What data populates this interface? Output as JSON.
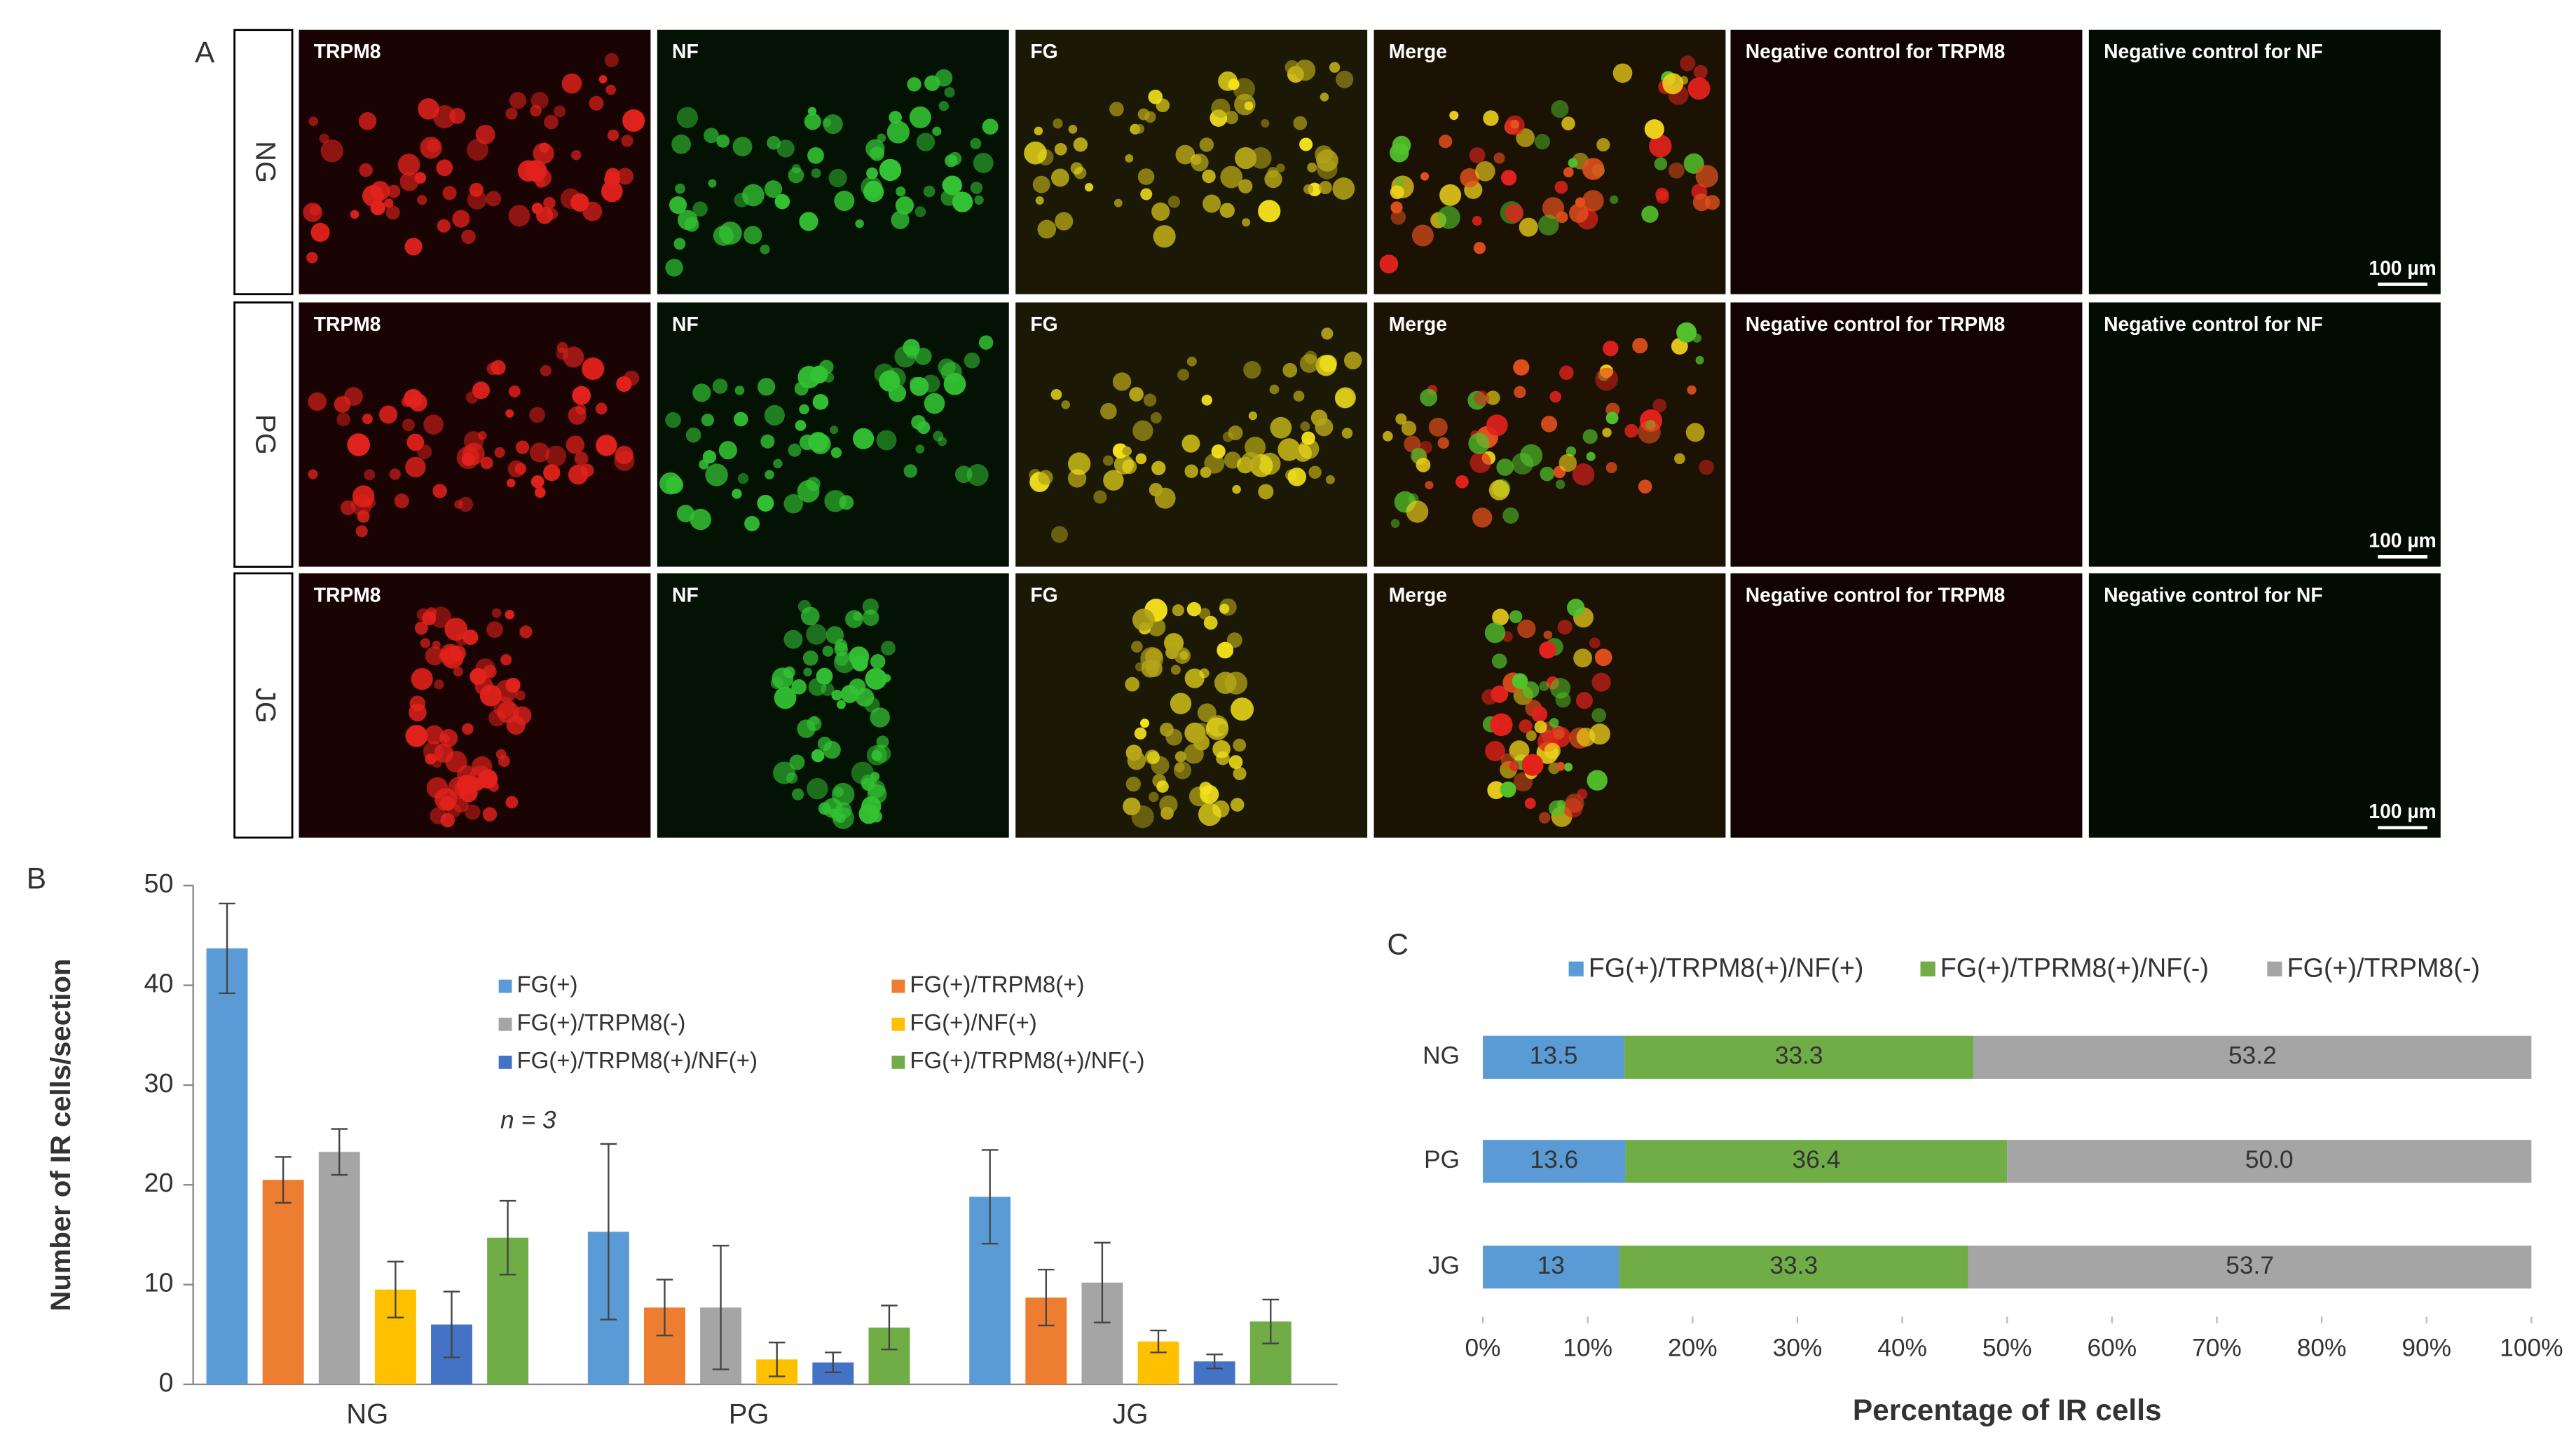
{
  "figure": {
    "panel_labels": [
      "A",
      "B",
      "C"
    ],
    "row_labels": [
      "NG",
      "PG",
      "JG"
    ],
    "column_labels": [
      "TRPM8",
      "NF",
      "FG",
      "Merge",
      "Negative control for TRPM8",
      "Negative control for NF"
    ],
    "scale_bar": "100 µm"
  },
  "chart_data": [
    {
      "type": "bar",
      "ylabel": "Number of IR cells/section",
      "annotation": "n = 3",
      "categories": [
        "NG",
        "PG",
        "JG"
      ],
      "series": [
        {
          "name": "FG(+)",
          "color": "#5b9bd5",
          "values": [
            43.7,
            15.3,
            18.8
          ],
          "errors": [
            4.5,
            8.8,
            4.7
          ]
        },
        {
          "name": "FG(+)/TRPM8(+)",
          "color": "#ed7d31",
          "values": [
            20.5,
            7.7,
            8.7
          ],
          "errors": [
            2.3,
            2.8,
            2.8
          ]
        },
        {
          "name": "FG(+)/TRPM8(-)",
          "color": "#a5a5a5",
          "values": [
            23.3,
            7.7,
            10.2
          ],
          "errors": [
            2.3,
            6.2,
            4.0
          ]
        },
        {
          "name": "FG(+)/NF(+)",
          "color": "#ffc000",
          "values": [
            9.5,
            2.5,
            4.3
          ],
          "errors": [
            2.8,
            1.7,
            1.1
          ]
        },
        {
          "name": "FG(+)/TRPM8(+)/NF(+)",
          "color": "#4472c4",
          "values": [
            6.0,
            2.2,
            2.3
          ],
          "errors": [
            3.3,
            1.0,
            0.7
          ]
        },
        {
          "name": "FG(+)/TRPM8(+)/NF(-)",
          "color": "#70ad47",
          "values": [
            14.7,
            5.7,
            6.3
          ],
          "errors": [
            3.7,
            2.2,
            2.2
          ]
        }
      ],
      "ylim": [
        0,
        50
      ],
      "yticks": [
        0,
        10,
        20,
        30,
        40,
        50
      ]
    },
    {
      "type": "stacked-barh",
      "xlabel": "Percentage of IR cells",
      "categories": [
        "NG",
        "PG",
        "JG"
      ],
      "series": [
        {
          "name": "FG(+)/TRPM8(+)/NF(+)",
          "color": "#5b9bd5",
          "values": [
            13.5,
            13.6,
            13.0
          ]
        },
        {
          "name": "FG(+)/TPRM8(+)/NF(-)",
          "color": "#70ad47",
          "values": [
            33.3,
            36.4,
            33.3
          ]
        },
        {
          "name": "FG(+)/TRPM8(-)",
          "color": "#a5a5a5",
          "values": [
            53.2,
            50.0,
            53.7
          ],
          "value_labels": [
            "53.2",
            "50.0",
            "53.7"
          ]
        }
      ],
      "xlim": [
        0,
        100
      ],
      "xticks": [
        {
          "value": 0,
          "label": "0%"
        },
        {
          "value": 10,
          "label": "10%"
        },
        {
          "value": 20,
          "label": "20%"
        },
        {
          "value": 30,
          "label": "30%"
        },
        {
          "value": 40,
          "label": "40%"
        },
        {
          "value": 50,
          "label": "50%"
        },
        {
          "value": 60,
          "label": "60%"
        },
        {
          "value": 70,
          "label": "70%"
        },
        {
          "value": 80,
          "label": "80%"
        },
        {
          "value": 90,
          "label": "90%"
        },
        {
          "value": 100,
          "label": "100%"
        }
      ]
    }
  ]
}
